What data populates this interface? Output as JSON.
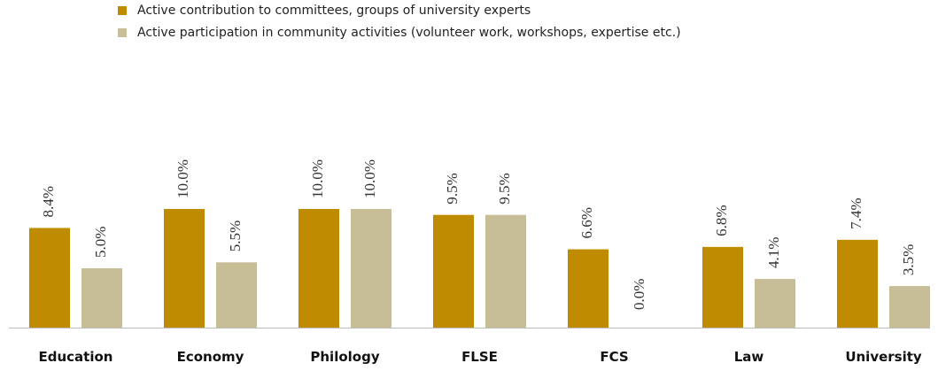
{
  "chart_data": {
    "type": "bar",
    "categories": [
      "Education",
      "Economy",
      "Philology",
      "FLSE",
      "FCS",
      "Law",
      "University"
    ],
    "series": [
      {
        "name": "Active contribution to committees, groups of university experts",
        "color": "#bf8b00",
        "values": [
          8.4,
          10.0,
          10.0,
          9.5,
          6.6,
          6.8,
          7.4
        ],
        "value_labels": [
          "8.4%",
          "10.0%",
          "10.0%",
          "9.5%",
          "6.6%",
          "6.8%",
          "7.4%"
        ]
      },
      {
        "name": "Active participation in community activities (volunteer work, workshops, expertise etc.)",
        "color": "#c7bd97",
        "values": [
          5.0,
          5.5,
          10.0,
          9.5,
          0.0,
          4.1,
          3.5
        ],
        "value_labels": [
          "5.0%",
          "5.5%",
          "10.0%",
          "9.5%",
          "0.0%",
          "4.1%",
          "3.5%"
        ]
      }
    ]
  }
}
